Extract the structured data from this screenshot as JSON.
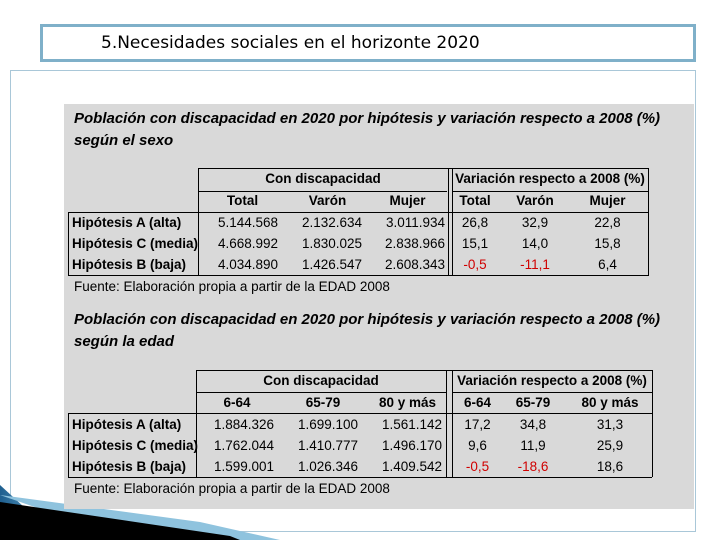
{
  "slide_title": "5.Necesidades sociales en el horizonte 2020",
  "table1": {
    "title": "Población con discapacidad en 2020 por hipótesis y variación respecto a 2008 (%) según el sexo",
    "group_headers": [
      "Con discapacidad",
      "Variación respecto a 2008 (%)"
    ],
    "col_headers": [
      "Total",
      "Varón",
      "Mujer",
      "Total",
      "Varón",
      "Mujer"
    ],
    "rows": [
      {
        "label": "Hipótesis A (alta)",
        "values": [
          "5.144.568",
          "2.132.634",
          "3.011.934",
          "26,8",
          "32,9",
          "22,8"
        ]
      },
      {
        "label": "Hipótesis C (media)",
        "values": [
          "4.668.992",
          "1.830.025",
          "2.838.966",
          "15,1",
          "14,0",
          "15,8"
        ]
      },
      {
        "label": "Hipótesis B (baja)",
        "values": [
          "4.034.890",
          "1.426.547",
          "2.608.343",
          "-0,5",
          "-11,1",
          "6,4"
        ]
      }
    ],
    "source": "Fuente: Elaboración propia a partir de la EDAD 2008"
  },
  "table2": {
    "title": "Población con discapacidad en 2020 por hipótesis y variación respecto a 2008 (%) según la edad",
    "group_headers": [
      "Con discapacidad",
      "Variación respecto a 2008 (%)"
    ],
    "col_headers": [
      "6-64",
      "65-79",
      "80 y más",
      "6-64",
      "65-79",
      "80 y más"
    ],
    "rows": [
      {
        "label": "Hipótesis A (alta)",
        "values": [
          "1.884.326",
          "1.699.100",
          "1.561.142",
          "17,2",
          "34,8",
          "31,3"
        ]
      },
      {
        "label": "Hipótesis C (media)",
        "values": [
          "1.762.044",
          "1.410.777",
          "1.496.170",
          "9,6",
          "11,9",
          "25,9"
        ]
      },
      {
        "label": "Hipótesis B (baja)",
        "values": [
          "1.599.001",
          "1.026.346",
          "1.409.542",
          "-0,5",
          "-18,6",
          "18,6"
        ]
      }
    ],
    "source": "Fuente: Elaboración propia a partir de la EDAD 2008"
  },
  "colors": {
    "negative_value": "#d00000",
    "panel_background": "#d9d9d9",
    "title_border": "#7fb0c9"
  }
}
